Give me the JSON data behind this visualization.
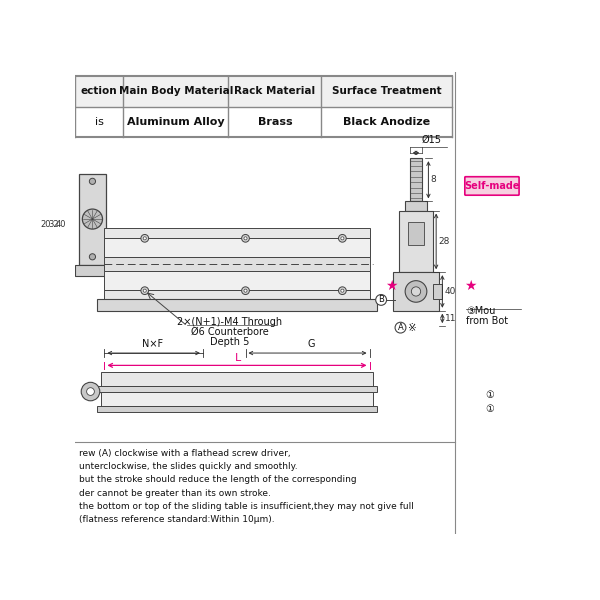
{
  "bg_color": "#ffffff",
  "table_header": [
    "ection",
    "Main Body Material",
    "Rack Material",
    "Surface Treatment"
  ],
  "table_row": [
    "is",
    "Aluminum Alloy",
    "Brass",
    "Black Anodize"
  ],
  "annotation_line1": "2×(N+1)-M4 Through",
  "annotation_line2": "Ø6 Counterbore",
  "annotation_line3": "Depth 5",
  "dim_bottom_labels": [
    "N×F",
    "G",
    "L"
  ],
  "bottom_text_lines": [
    "rew (A) clockwise with a flathead screw driver,",
    "unterclockwise, the slides quickly and smoothly.",
    "but the stroke should reduce the length of the corresponding",
    "der cannot be greater than its own stroke.",
    "the bottom or top of the sliding table is insufficient,they may not give full",
    "(flatness reference standard:Within 10μm)."
  ],
  "right_labels_line1": "③Mou",
  "right_labels_line2": "from Bot",
  "self_made_label": "Self-made",
  "star_color": "#e6007e",
  "table_line_color": "#888888",
  "drawing_line_color": "#444444",
  "text_color": "#111111",
  "dim_color": "#333333"
}
